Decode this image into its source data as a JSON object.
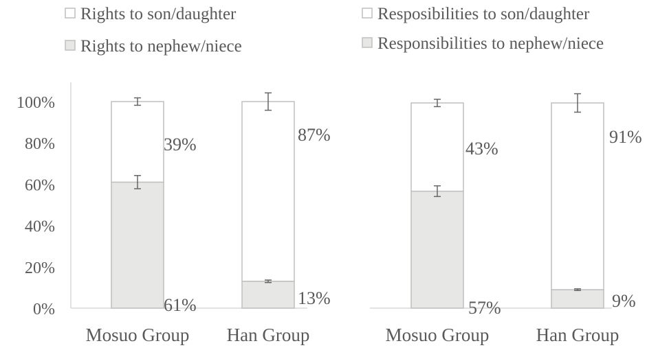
{
  "colors": {
    "stack_bottom_fill": "#e7e7e6",
    "stack_top_fill": "#ffffff",
    "stroke": "#bfbfbf",
    "text": "#595959",
    "error_bar": "#666666"
  },
  "chart_data": [
    {
      "type": "bar",
      "stacked": true,
      "legend_position": "top",
      "categories": [
        "Mosuo Group",
        "Han Group"
      ],
      "series": [
        {
          "name": "Rights to nephew/niece",
          "values": [
            61,
            13
          ],
          "labels": [
            "61%",
            "13%"
          ],
          "error": [
            3.2,
            0.6
          ]
        },
        {
          "name": "Rights to son/daughter",
          "values": [
            39,
            87
          ],
          "labels": [
            "39%",
            "87%"
          ],
          "error": [
            1.8,
            4.2
          ]
        }
      ],
      "ylim": [
        0,
        100
      ],
      "yticks": [
        "0%",
        "20%",
        "40%",
        "60%",
        "80%",
        "100%"
      ],
      "grid": false
    },
    {
      "type": "bar",
      "stacked": true,
      "legend_position": "top",
      "categories": [
        "Mosuo Group",
        "Han Group"
      ],
      "series": [
        {
          "name": "Responsibilities to nephew/niece",
          "values": [
            57,
            9
          ],
          "labels": [
            "57%",
            "9%"
          ],
          "error": [
            2.6,
            0.4
          ]
        },
        {
          "name": "Resposibilities to son/daughter",
          "values": [
            43,
            91
          ],
          "labels": [
            "43%",
            "91%"
          ],
          "error": [
            1.8,
            4.5
          ]
        }
      ],
      "ylim": [
        0,
        100
      ],
      "grid": false
    }
  ]
}
